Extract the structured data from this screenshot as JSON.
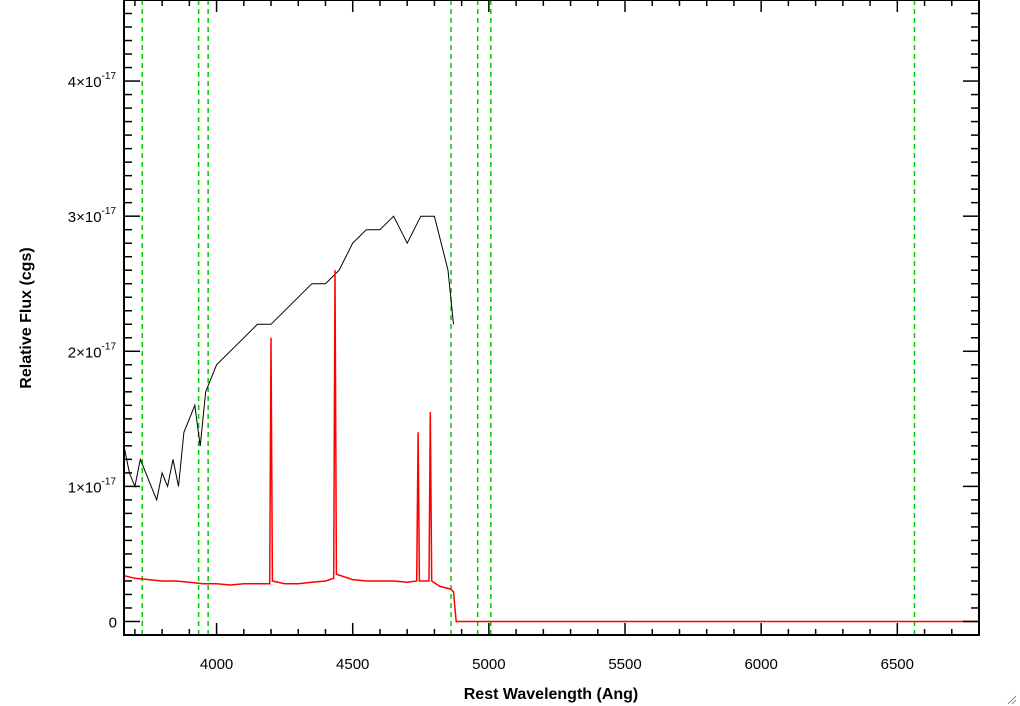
{
  "chart_data": {
    "type": "line",
    "title": "",
    "xlabel": "Rest Wavelength (Ang)",
    "ylabel": "Relative Flux (cgs)",
    "xlim": [
      3660,
      6800
    ],
    "ylim": [
      -1e-18,
      4.6e-17
    ],
    "x_ticks": [
      4000,
      4500,
      5000,
      5500,
      6000,
      6500
    ],
    "x_tick_labels": [
      "4000",
      "4500",
      "5000",
      "5500",
      "6000",
      "6500"
    ],
    "y_ticks": [
      0,
      1e-17,
      2e-17,
      3e-17,
      4e-17
    ],
    "y_tick_mantissa": [
      "0",
      "1",
      "2",
      "3",
      "4"
    ],
    "y_tick_base": "×10",
    "y_tick_exponent": "-17",
    "grid": false,
    "colors": {
      "observed": "#000000",
      "model": "#ff0000",
      "line_markers": "#00cc00"
    },
    "line_markers": [
      3727,
      3934,
      3969,
      4861,
      4959,
      5007,
      6563
    ],
    "series": [
      {
        "name": "",
        "color": "#000000",
        "x": [
          3660,
          3680,
          3700,
          3720,
          3740,
          3760,
          3780,
          3800,
          3820,
          3840,
          3860,
          3880,
          3900,
          3920,
          3940,
          3960,
          3980,
          4000,
          4050,
          4100,
          4150,
          4200,
          4250,
          4300,
          4350,
          4400,
          4450,
          4500,
          4550,
          4600,
          4650,
          4700,
          4750,
          4800,
          4850,
          4870
        ],
        "y": [
          1.3e-17,
          1.1e-17,
          1e-17,
          1.2e-17,
          1.1e-17,
          1e-17,
          9e-18,
          1.1e-17,
          1e-17,
          1.2e-17,
          1e-17,
          1.4e-17,
          1.5e-17,
          1.6e-17,
          1.3e-17,
          1.7e-17,
          1.8e-17,
          1.9e-17,
          2e-17,
          2.1e-17,
          2.2e-17,
          2.2e-17,
          2.3e-17,
          2.4e-17,
          2.5e-17,
          2.5e-17,
          2.6e-17,
          2.8e-17,
          2.9e-17,
          2.9e-17,
          3e-17,
          2.8e-17,
          3e-17,
          3e-17,
          2.6e-17,
          2.2e-17
        ]
      },
      {
        "name": "",
        "color": "#ff0000",
        "x": [
          3660,
          3700,
          3750,
          3800,
          3850,
          3900,
          3950,
          4000,
          4050,
          4100,
          4150,
          4195,
          4200,
          4205,
          4250,
          4300,
          4350,
          4400,
          4430,
          4435,
          4440,
          4500,
          4550,
          4600,
          4650,
          4700,
          4735,
          4740,
          4745,
          4780,
          4785,
          4790,
          4820,
          4860,
          4870,
          4880,
          5000,
          5500,
          6000,
          6500,
          6800
        ],
        "y": [
          3.4e-18,
          3.2e-18,
          3.1e-18,
          3e-18,
          3e-18,
          2.9e-18,
          2.8e-18,
          2.8e-18,
          2.7e-18,
          2.8e-18,
          2.8e-18,
          2.8e-18,
          2.1e-17,
          3e-18,
          2.8e-18,
          2.8e-18,
          2.9e-18,
          3e-18,
          3.2e-18,
          2.6e-17,
          3.5e-18,
          3.1e-18,
          3e-18,
          3e-18,
          3e-18,
          2.9e-18,
          3e-18,
          1.4e-17,
          3e-18,
          3e-18,
          1.55e-17,
          3e-18,
          2.6e-18,
          2.4e-18,
          2.2e-18,
          0.0,
          0.0,
          0.0,
          0.0,
          0.0,
          0.0
        ]
      }
    ]
  }
}
